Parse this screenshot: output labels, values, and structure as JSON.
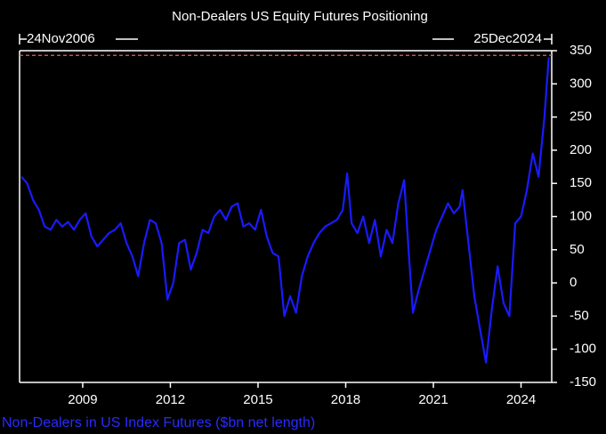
{
  "chart_data": {
    "type": "line",
    "title": "Non-Dealers US Equity Futures Positioning",
    "start_label": "24Nov2006",
    "end_label": "25Dec2024",
    "footer": "Non-Dealers in US Index Futures ($bn net length)",
    "x": [
      2006.9,
      2007.1,
      2007.3,
      2007.5,
      2007.7,
      2007.9,
      2008.1,
      2008.3,
      2008.5,
      2008.7,
      2008.9,
      2009.1,
      2009.3,
      2009.5,
      2009.7,
      2009.9,
      2010.1,
      2010.3,
      2010.5,
      2010.7,
      2010.9,
      2011.1,
      2011.3,
      2011.5,
      2011.7,
      2011.9,
      2012.1,
      2012.3,
      2012.5,
      2012.7,
      2012.9,
      2013.1,
      2013.3,
      2013.5,
      2013.7,
      2013.9,
      2014.1,
      2014.3,
      2014.5,
      2014.7,
      2014.9,
      2015.1,
      2015.3,
      2015.5,
      2015.7,
      2015.9,
      2016.1,
      2016.3,
      2016.5,
      2016.7,
      2016.9,
      2017.1,
      2017.3,
      2017.5,
      2017.7,
      2017.9,
      2018.05,
      2018.2,
      2018.4,
      2018.6,
      2018.8,
      2019.0,
      2019.2,
      2019.4,
      2019.6,
      2019.8,
      2020.0,
      2020.15,
      2020.3,
      2020.5,
      2020.7,
      2020.9,
      2021.1,
      2021.3,
      2021.5,
      2021.7,
      2021.9,
      2022.0,
      2022.2,
      2022.4,
      2022.6,
      2022.8,
      2023.0,
      2023.2,
      2023.4,
      2023.6,
      2023.8,
      2024.0,
      2024.2,
      2024.4,
      2024.6,
      2024.8,
      2024.95
    ],
    "series": [
      {
        "name": "Non-Dealers in US Index Futures",
        "color": "#1a1aff",
        "values": [
          160,
          150,
          125,
          110,
          85,
          80,
          95,
          85,
          92,
          80,
          95,
          105,
          70,
          55,
          65,
          75,
          80,
          90,
          60,
          40,
          10,
          60,
          95,
          90,
          60,
          -25,
          0,
          60,
          65,
          20,
          45,
          80,
          75,
          100,
          110,
          95,
          115,
          120,
          85,
          90,
          80,
          110,
          70,
          45,
          40,
          -50,
          -20,
          -45,
          10,
          40,
          60,
          75,
          85,
          90,
          95,
          110,
          165,
          90,
          75,
          100,
          60,
          95,
          40,
          80,
          60,
          120,
          155,
          50,
          -45,
          -10,
          20,
          50,
          80,
          100,
          120,
          105,
          115,
          140,
          60,
          -20,
          -70,
          -120,
          -40,
          25,
          -30,
          -50,
          90,
          100,
          140,
          195,
          160,
          250,
          340
        ]
      }
    ],
    "xlim": [
      2006.84,
      2025.05
    ],
    "xticks": [
      2009,
      2012,
      2015,
      2018,
      2021,
      2024
    ],
    "ylim": [
      -150,
      350
    ],
    "yticks": [
      -150,
      -100,
      -50,
      0,
      50,
      100,
      150,
      200,
      250,
      300,
      350
    ],
    "ref_line": {
      "value": 343,
      "color": "#ff5555"
    }
  }
}
